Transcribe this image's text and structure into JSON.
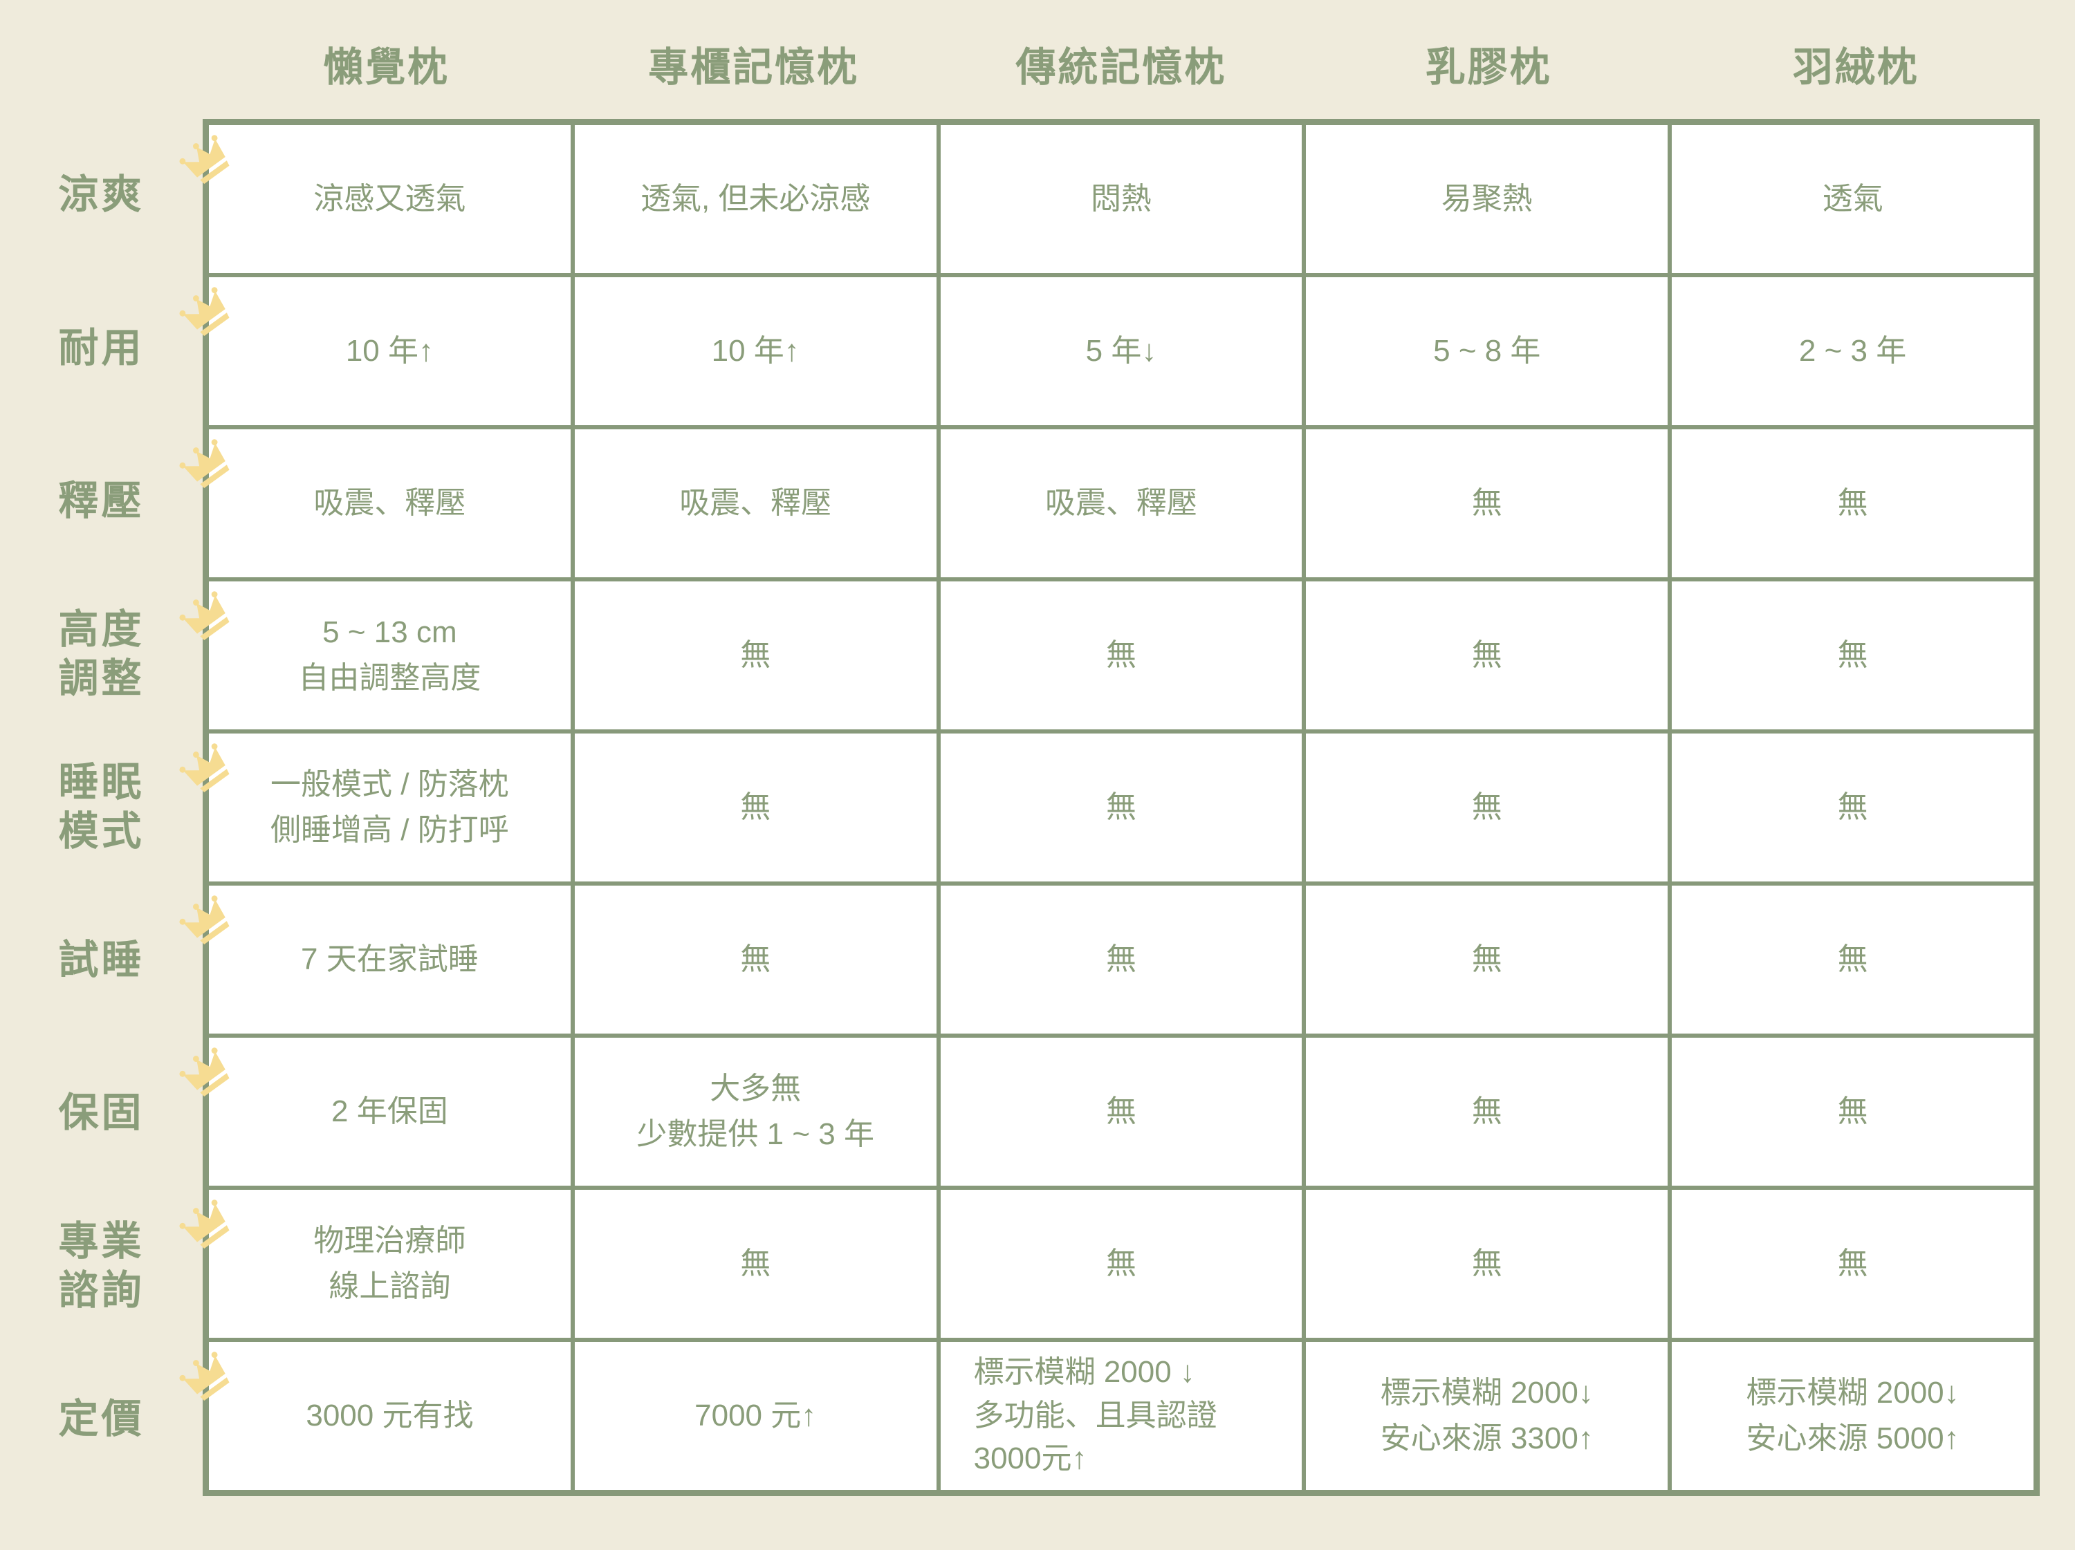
{
  "theme": {
    "background": "#EFEBDC",
    "line_green": "#87997A",
    "text_green": "#8A9D7A",
    "cell_background": "#FFFFFF",
    "crown_gold": "#F6DC92"
  },
  "table": {
    "columns": [
      "懶覺枕",
      "專櫃記憶枕",
      "傳統記憶枕",
      "乳膠枕",
      "羽絨枕"
    ],
    "rows": [
      {
        "label_lines": [
          "涼爽"
        ],
        "cells": [
          [
            "涼感又透氣"
          ],
          [
            "透氣, 但未必涼感"
          ],
          [
            "悶熱"
          ],
          [
            "易聚熱"
          ],
          [
            "透氣"
          ]
        ]
      },
      {
        "label_lines": [
          "耐用"
        ],
        "cells": [
          [
            "10 年↑"
          ],
          [
            "10 年↑"
          ],
          [
            "5 年↓"
          ],
          [
            "5 ~ 8 年"
          ],
          [
            "2 ~ 3 年"
          ]
        ]
      },
      {
        "label_lines": [
          "釋壓"
        ],
        "cells": [
          [
            "吸震、釋壓"
          ],
          [
            "吸震、釋壓"
          ],
          [
            "吸震、釋壓"
          ],
          [
            "無"
          ],
          [
            "無"
          ]
        ]
      },
      {
        "label_lines": [
          "高度",
          "調整"
        ],
        "cells": [
          [
            "5 ~ 13 cm",
            "自由調整高度"
          ],
          [
            "無"
          ],
          [
            "無"
          ],
          [
            "無"
          ],
          [
            "無"
          ]
        ]
      },
      {
        "label_lines": [
          "睡眠",
          "模式"
        ],
        "cells": [
          [
            "一般模式 / 防落枕",
            "側睡增高 / 防打呼"
          ],
          [
            "無"
          ],
          [
            "無"
          ],
          [
            "無"
          ],
          [
            "無"
          ]
        ]
      },
      {
        "label_lines": [
          "試睡"
        ],
        "cells": [
          [
            "7 天在家試睡"
          ],
          [
            "無"
          ],
          [
            "無"
          ],
          [
            "無"
          ],
          [
            "無"
          ]
        ]
      },
      {
        "label_lines": [
          "保固"
        ],
        "cells": [
          [
            "2 年保固"
          ],
          [
            "大多無",
            "少數提供 1 ~ 3 年"
          ],
          [
            "無"
          ],
          [
            "無"
          ],
          [
            "無"
          ]
        ]
      },
      {
        "label_lines": [
          "專業",
          "諮詢"
        ],
        "cells": [
          [
            "物理治療師",
            "線上諮詢"
          ],
          [
            "無"
          ],
          [
            "無"
          ],
          [
            "無"
          ],
          [
            "無"
          ]
        ]
      },
      {
        "label_lines": [
          "定價"
        ],
        "cells": [
          [
            "3000 元有找"
          ],
          [
            "7000 元↑"
          ],
          [
            "標示模糊 2000 ↓",
            "多功能、且具認證",
            "3000元↑"
          ],
          [
            "標示模糊 2000↓",
            "安心來源 3300↑"
          ],
          [
            "標示模糊 2000↓",
            "安心來源 5000↑"
          ]
        ],
        "cell_align": [
          "center",
          "center",
          "left",
          "center",
          "center"
        ]
      }
    ]
  }
}
